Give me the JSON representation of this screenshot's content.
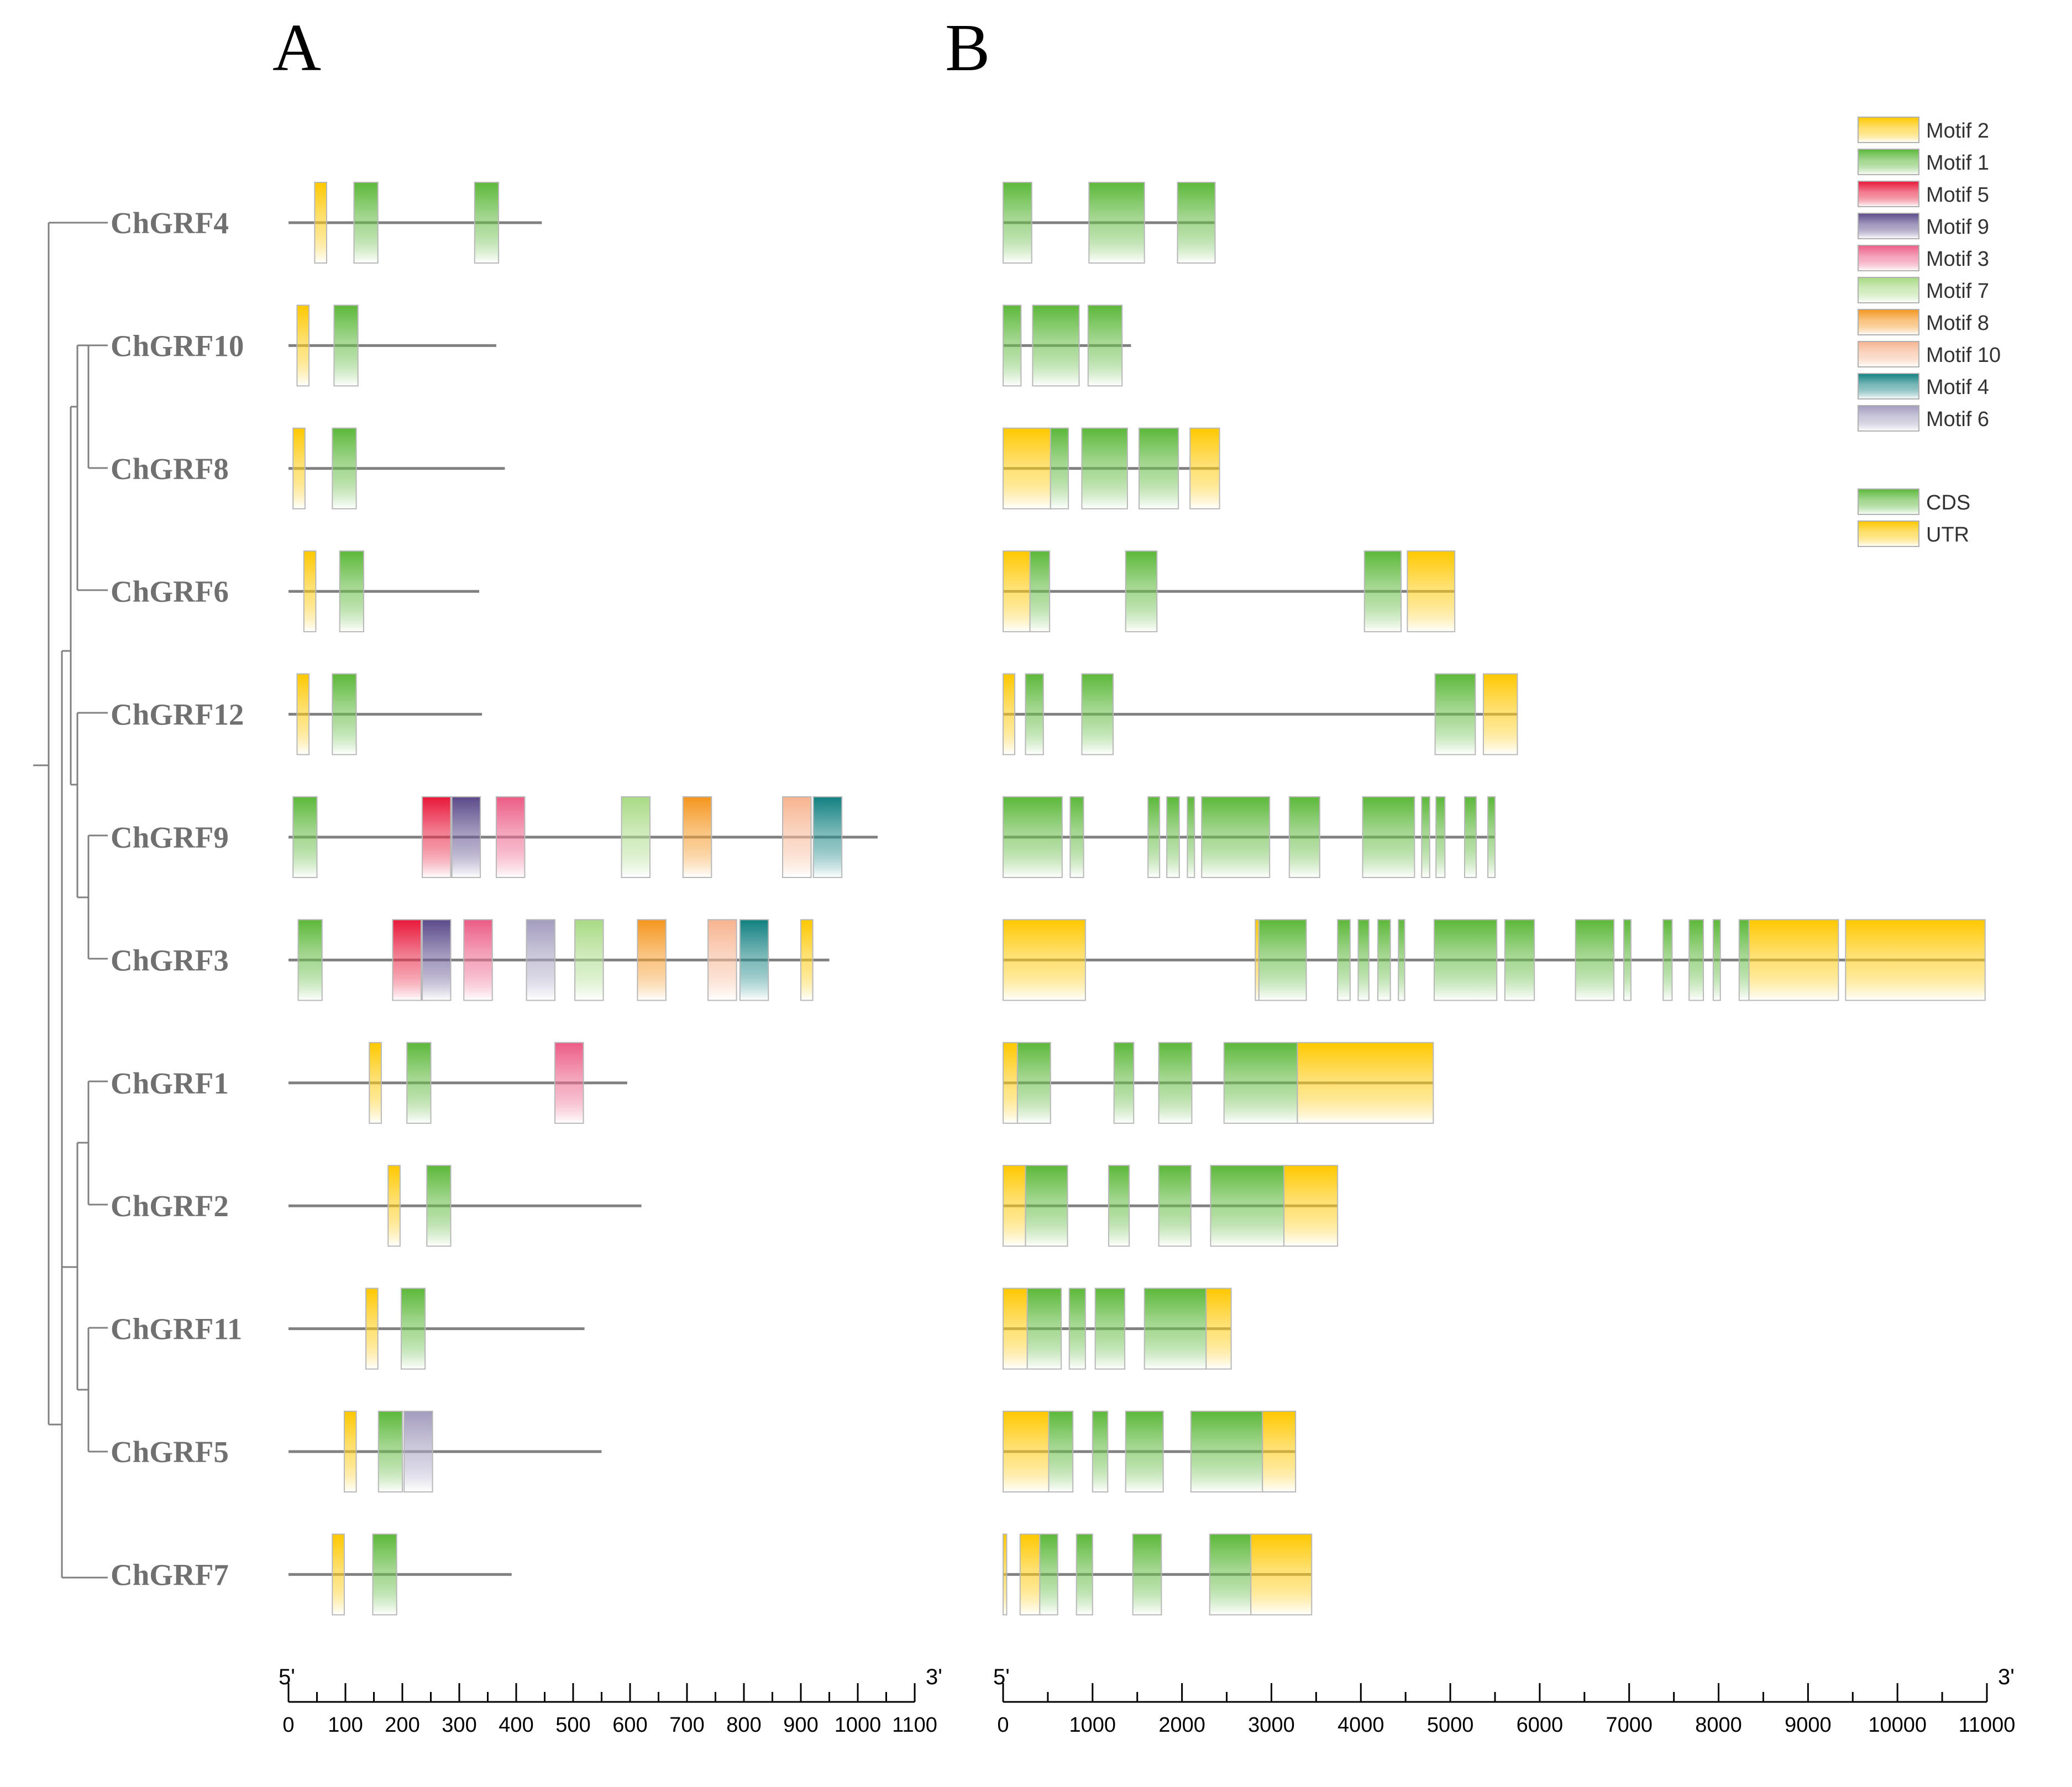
{
  "panels": {
    "a": "A",
    "b": "B"
  },
  "genes": [
    {
      "name": "ChGRF4",
      "protein_length": 445,
      "motifs": [
        {
          "id": "Motif 2",
          "start": 46,
          "end": 67
        },
        {
          "id": "Motif 1",
          "start": 115,
          "end": 157
        },
        {
          "id": "Motif 1",
          "start": 327,
          "end": 369
        }
      ],
      "structure": {
        "length": 2370,
        "features": [
          {
            "type": "CDS",
            "start": 0,
            "end": 320
          },
          {
            "type": "CDS",
            "start": 960,
            "end": 1580
          },
          {
            "type": "CDS",
            "start": 1950,
            "end": 2370
          }
        ]
      }
    },
    {
      "name": "ChGRF10",
      "protein_length": 365,
      "motifs": [
        {
          "id": "Motif 2",
          "start": 15,
          "end": 36
        },
        {
          "id": "Motif 1",
          "start": 80,
          "end": 122
        }
      ],
      "structure": {
        "length": 1430,
        "features": [
          {
            "type": "CDS",
            "start": 0,
            "end": 200
          },
          {
            "type": "CDS",
            "start": 330,
            "end": 850
          },
          {
            "type": "CDS",
            "start": 950,
            "end": 1330
          }
        ]
      }
    },
    {
      "name": "ChGRF8",
      "protein_length": 380,
      "motifs": [
        {
          "id": "Motif 2",
          "start": 8,
          "end": 29
        },
        {
          "id": "Motif 1",
          "start": 77,
          "end": 119
        }
      ],
      "structure": {
        "length": 2420,
        "features": [
          {
            "type": "UTR",
            "start": 0,
            "end": 530
          },
          {
            "type": "CDS",
            "start": 530,
            "end": 730
          },
          {
            "type": "CDS",
            "start": 880,
            "end": 1390
          },
          {
            "type": "CDS",
            "start": 1520,
            "end": 1960
          },
          {
            "type": "UTR",
            "start": 2090,
            "end": 2420
          }
        ]
      }
    },
    {
      "name": "ChGRF6",
      "protein_length": 335,
      "motifs": [
        {
          "id": "Motif 2",
          "start": 27,
          "end": 48
        },
        {
          "id": "Motif 1",
          "start": 90,
          "end": 132
        }
      ],
      "structure": {
        "length": 5050,
        "features": [
          {
            "type": "UTR",
            "start": 0,
            "end": 300
          },
          {
            "type": "CDS",
            "start": 300,
            "end": 520
          },
          {
            "type": "CDS",
            "start": 1370,
            "end": 1720
          },
          {
            "type": "CDS",
            "start": 4040,
            "end": 4450
          },
          {
            "type": "UTR",
            "start": 4520,
            "end": 5050
          }
        ]
      }
    },
    {
      "name": "ChGRF12",
      "protein_length": 340,
      "motifs": [
        {
          "id": "Motif 2",
          "start": 15,
          "end": 36
        },
        {
          "id": "Motif 1",
          "start": 77,
          "end": 119
        }
      ],
      "structure": {
        "length": 5750,
        "features": [
          {
            "type": "UTR",
            "start": 0,
            "end": 130
          },
          {
            "type": "CDS",
            "start": 250,
            "end": 450
          },
          {
            "type": "CDS",
            "start": 880,
            "end": 1230
          },
          {
            "type": "CDS",
            "start": 4830,
            "end": 5280
          },
          {
            "type": "UTR",
            "start": 5370,
            "end": 5750
          }
        ]
      }
    },
    {
      "name": "ChGRF9",
      "protein_length": 1035,
      "motifs": [
        {
          "id": "Motif 1",
          "start": 8,
          "end": 50
        },
        {
          "id": "Motif 5",
          "start": 235,
          "end": 285
        },
        {
          "id": "Motif 9",
          "start": 287,
          "end": 337
        },
        {
          "id": "Motif 3",
          "start": 365,
          "end": 415
        },
        {
          "id": "Motif 7",
          "start": 585,
          "end": 635
        },
        {
          "id": "Motif 8",
          "start": 693,
          "end": 743
        },
        {
          "id": "Motif 10",
          "start": 868,
          "end": 918
        },
        {
          "id": "Motif 4",
          "start": 922,
          "end": 972
        }
      ],
      "structure": {
        "length": 5500,
        "features": [
          {
            "type": "CDS",
            "start": 0,
            "end": 660
          },
          {
            "type": "CDS",
            "start": 750,
            "end": 900
          },
          {
            "type": "CDS",
            "start": 1620,
            "end": 1750
          },
          {
            "type": "CDS",
            "start": 1830,
            "end": 1970
          },
          {
            "type": "CDS",
            "start": 2060,
            "end": 2140
          },
          {
            "type": "CDS",
            "start": 2220,
            "end": 2980
          },
          {
            "type": "CDS",
            "start": 3200,
            "end": 3540
          },
          {
            "type": "CDS",
            "start": 4020,
            "end": 4600
          },
          {
            "type": "CDS",
            "start": 4680,
            "end": 4770
          },
          {
            "type": "CDS",
            "start": 4840,
            "end": 4940
          },
          {
            "type": "CDS",
            "start": 5160,
            "end": 5290
          },
          {
            "type": "CDS",
            "start": 5420,
            "end": 5500
          }
        ]
      }
    },
    {
      "name": "ChGRF3",
      "protein_length": 950,
      "motifs": [
        {
          "id": "Motif 1",
          "start": 17,
          "end": 59
        },
        {
          "id": "Motif 5",
          "start": 183,
          "end": 233
        },
        {
          "id": "Motif 9",
          "start": 235,
          "end": 285
        },
        {
          "id": "Motif 3",
          "start": 308,
          "end": 358
        },
        {
          "id": "Motif 6",
          "start": 418,
          "end": 468
        },
        {
          "id": "Motif 7",
          "start": 503,
          "end": 553
        },
        {
          "id": "Motif 8",
          "start": 613,
          "end": 663
        },
        {
          "id": "Motif 10",
          "start": 737,
          "end": 787
        },
        {
          "id": "Motif 4",
          "start": 793,
          "end": 843
        },
        {
          "id": "Motif 2",
          "start": 900,
          "end": 921
        }
      ],
      "structure": {
        "length": 10980,
        "features": [
          {
            "type": "UTR",
            "start": 0,
            "end": 920
          },
          {
            "type": "UTR",
            "start": 2820,
            "end": 2860
          },
          {
            "type": "CDS",
            "start": 2860,
            "end": 3390
          },
          {
            "type": "CDS",
            "start": 3740,
            "end": 3880
          },
          {
            "type": "CDS",
            "start": 3970,
            "end": 4090
          },
          {
            "type": "CDS",
            "start": 4190,
            "end": 4330
          },
          {
            "type": "CDS",
            "start": 4420,
            "end": 4490
          },
          {
            "type": "CDS",
            "start": 4820,
            "end": 5520
          },
          {
            "type": "CDS",
            "start": 5610,
            "end": 5940
          },
          {
            "type": "CDS",
            "start": 6400,
            "end": 6830
          },
          {
            "type": "CDS",
            "start": 6940,
            "end": 7020
          },
          {
            "type": "CDS",
            "start": 7380,
            "end": 7480
          },
          {
            "type": "CDS",
            "start": 7670,
            "end": 7830
          },
          {
            "type": "CDS",
            "start": 7940,
            "end": 8020
          },
          {
            "type": "CDS",
            "start": 8230,
            "end": 8340
          },
          {
            "type": "UTR",
            "start": 8340,
            "end": 9340
          },
          {
            "type": "UTR",
            "start": 9420,
            "end": 10980
          }
        ]
      }
    },
    {
      "name": "ChGRF1",
      "protein_length": 595,
      "motifs": [
        {
          "id": "Motif 2",
          "start": 142,
          "end": 163
        },
        {
          "id": "Motif 1",
          "start": 208,
          "end": 250
        },
        {
          "id": "Motif 3",
          "start": 468,
          "end": 518
        }
      ],
      "structure": {
        "length": 4810,
        "features": [
          {
            "type": "UTR",
            "start": 0,
            "end": 160
          },
          {
            "type": "CDS",
            "start": 160,
            "end": 530
          },
          {
            "type": "CDS",
            "start": 1240,
            "end": 1460
          },
          {
            "type": "CDS",
            "start": 1740,
            "end": 2110
          },
          {
            "type": "CDS",
            "start": 2470,
            "end": 3290
          },
          {
            "type": "UTR",
            "start": 3290,
            "end": 4810
          }
        ]
      }
    },
    {
      "name": "ChGRF2",
      "protein_length": 620,
      "motifs": [
        {
          "id": "Motif 2",
          "start": 175,
          "end": 196
        },
        {
          "id": "Motif 1",
          "start": 243,
          "end": 285
        }
      ],
      "structure": {
        "length": 3740,
        "features": [
          {
            "type": "UTR",
            "start": 0,
            "end": 250
          },
          {
            "type": "CDS",
            "start": 250,
            "end": 720
          },
          {
            "type": "CDS",
            "start": 1180,
            "end": 1410
          },
          {
            "type": "CDS",
            "start": 1740,
            "end": 2100
          },
          {
            "type": "CDS",
            "start": 2320,
            "end": 3140
          },
          {
            "type": "UTR",
            "start": 3140,
            "end": 3740
          }
        ]
      }
    },
    {
      "name": "ChGRF11",
      "protein_length": 520,
      "motifs": [
        {
          "id": "Motif 2",
          "start": 136,
          "end": 157
        },
        {
          "id": "Motif 1",
          "start": 198,
          "end": 240
        }
      ],
      "structure": {
        "length": 2550,
        "features": [
          {
            "type": "UTR",
            "start": 0,
            "end": 270
          },
          {
            "type": "CDS",
            "start": 270,
            "end": 650
          },
          {
            "type": "CDS",
            "start": 740,
            "end": 920
          },
          {
            "type": "CDS",
            "start": 1030,
            "end": 1360
          },
          {
            "type": "CDS",
            "start": 1580,
            "end": 2270
          },
          {
            "type": "UTR",
            "start": 2270,
            "end": 2550
          }
        ]
      }
    },
    {
      "name": "ChGRF5",
      "protein_length": 550,
      "motifs": [
        {
          "id": "Motif 2",
          "start": 98,
          "end": 119
        },
        {
          "id": "Motif 1",
          "start": 158,
          "end": 200
        },
        {
          "id": "Motif 6",
          "start": 203,
          "end": 253
        }
      ],
      "structure": {
        "length": 3270,
        "features": [
          {
            "type": "UTR",
            "start": 0,
            "end": 510
          },
          {
            "type": "CDS",
            "start": 510,
            "end": 780
          },
          {
            "type": "CDS",
            "start": 1000,
            "end": 1170
          },
          {
            "type": "CDS",
            "start": 1370,
            "end": 1790
          },
          {
            "type": "CDS",
            "start": 2100,
            "end": 2900
          },
          {
            "type": "UTR",
            "start": 2900,
            "end": 3270
          }
        ]
      }
    },
    {
      "name": "ChGRF7",
      "protein_length": 392,
      "motifs": [
        {
          "id": "Motif 2",
          "start": 77,
          "end": 98
        },
        {
          "id": "Motif 1",
          "start": 148,
          "end": 190
        }
      ],
      "structure": {
        "length": 3450,
        "features": [
          {
            "type": "UTR",
            "start": 0,
            "end": 40
          },
          {
            "type": "UTR",
            "start": 190,
            "end": 410
          },
          {
            "type": "CDS",
            "start": 410,
            "end": 610
          },
          {
            "type": "CDS",
            "start": 820,
            "end": 1000
          },
          {
            "type": "CDS",
            "start": 1450,
            "end": 1770
          },
          {
            "type": "CDS",
            "start": 2310,
            "end": 2770
          },
          {
            "type": "UTR",
            "start": 2770,
            "end": 3450
          }
        ]
      }
    }
  ],
  "motif_legend": [
    {
      "label": "Motif 2",
      "color": "#FFC800"
    },
    {
      "label": "Motif 1",
      "color": "#5CB83A"
    },
    {
      "label": "Motif 5",
      "color": "#E8183A"
    },
    {
      "label": "Motif 9",
      "color": "#5B4A8A"
    },
    {
      "label": "Motif 3",
      "color": "#EC5C86"
    },
    {
      "label": "Motif 7",
      "color": "#A8DA84"
    },
    {
      "label": "Motif 8",
      "color": "#F5961E"
    },
    {
      "label": "Motif 10",
      "color": "#F7B490"
    },
    {
      "label": "Motif 4",
      "color": "#118080"
    },
    {
      "label": "Motif 6",
      "color": "#A39CBE"
    }
  ],
  "structure_legend": [
    {
      "label": "CDS",
      "color": "#5CB83A"
    },
    {
      "label": "UTR",
      "color": "#FFC800"
    }
  ],
  "axis_a": {
    "start_label": "5'",
    "end_label": "3'",
    "min": 0,
    "max": 1100,
    "step": 100,
    "tick_labels": [
      "0",
      "100",
      "200",
      "300",
      "400",
      "500",
      "600",
      "700",
      "800",
      "900",
      "1000",
      "1100"
    ]
  },
  "axis_b": {
    "start_label": "5'",
    "end_label": "3'",
    "min": 0,
    "max": 11000,
    "step": 1000,
    "tick_labels": [
      "0",
      "1000",
      "2000",
      "3000",
      "4000",
      "5000",
      "6000",
      "7000",
      "8000",
      "9000",
      "10000",
      "11000"
    ]
  }
}
